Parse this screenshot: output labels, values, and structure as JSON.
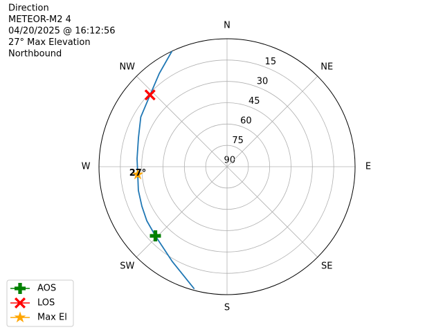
{
  "chart_data": {
    "type": "polar",
    "title_lines": [
      "Direction",
      "METEOR-M2 4",
      "04/20/2025 @ 16:12:56",
      "27° Max Elevation",
      "Northbound"
    ],
    "rlim": [
      90,
      0
    ],
    "rticks": [
      15,
      30,
      45,
      60,
      75,
      90
    ],
    "thetaticks": [
      {
        "value": 0,
        "label": "N"
      },
      {
        "value": 45,
        "label": "NE"
      },
      {
        "value": 90,
        "label": "E"
      },
      {
        "value": 135,
        "label": "SE"
      },
      {
        "value": 180,
        "label": "S"
      },
      {
        "value": 225,
        "label": "SW"
      },
      {
        "value": 270,
        "label": "W"
      },
      {
        "value": 315,
        "label": "NW"
      }
    ],
    "grid": true,
    "track": {
      "color": "#1f77b4",
      "azimuth": [
        195,
        210,
        226,
        236,
        245,
        255,
        265,
        275,
        288,
        300,
        313,
        324,
        334.5
      ],
      "elevation": [
        1,
        13,
        20,
        22,
        24,
        25.5,
        27,
        26.5,
        24.5,
        20,
        16,
        9,
        0
      ]
    },
    "series": [
      {
        "name": "AOS",
        "color": "green",
        "marker": "plus",
        "azimuth": [
          226
        ],
        "elevation": [
          20
        ]
      },
      {
        "name": "LOS",
        "color": "red",
        "marker": "x",
        "azimuth": [
          313
        ],
        "elevation": [
          16
        ]
      },
      {
        "name": "Max El",
        "color": "orange",
        "marker": "star",
        "azimuth": [
          265
        ],
        "elevation": [
          27
        ]
      }
    ],
    "annotation": "27°",
    "legend": "lower left"
  }
}
